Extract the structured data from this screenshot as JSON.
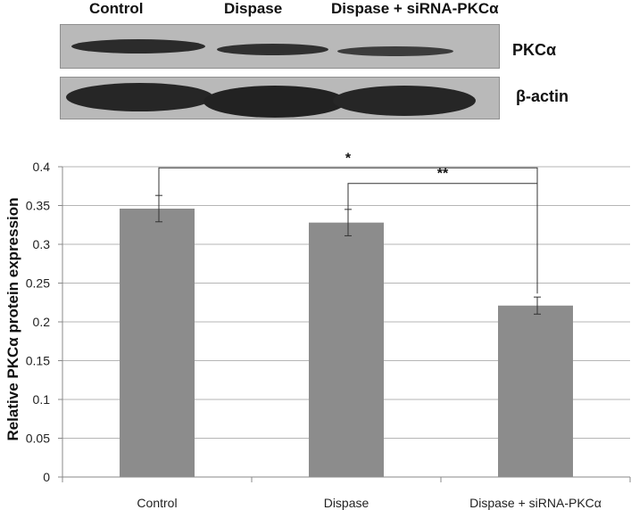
{
  "blot": {
    "lane_labels": [
      "Control",
      "Dispase",
      "Dispase + siRNA-PKCα"
    ],
    "rows": [
      {
        "label": "PKCα",
        "intensity": [
          0.85,
          0.8,
          0.65
        ]
      },
      {
        "label": "β-actin",
        "intensity": [
          0.95,
          1.0,
          0.97
        ]
      }
    ]
  },
  "chart_data": {
    "type": "bar",
    "categories": [
      "Control",
      "Dispase",
      "Dispase + siRNA-PKCα"
    ],
    "values": [
      0.346,
      0.328,
      0.221
    ],
    "error": [
      0.017,
      0.017,
      0.011
    ],
    "ylabel": "Relative PKCα protein expression",
    "xlabel": "",
    "ylim": [
      0,
      0.4
    ],
    "yticks": [
      "0",
      "0.05",
      "0.1",
      "0.15",
      "0.2",
      "0.25",
      "0.3",
      "0.35",
      "0.4"
    ],
    "grid": true,
    "significance": [
      {
        "from": 0,
        "to": 2,
        "label": "*"
      },
      {
        "from": 1,
        "to": 2,
        "label": "**"
      }
    ],
    "colors": {
      "bar": "#8c8c8c",
      "grid": "#b5b5b5",
      "axis": "#888888",
      "bracket": "#333333"
    }
  }
}
